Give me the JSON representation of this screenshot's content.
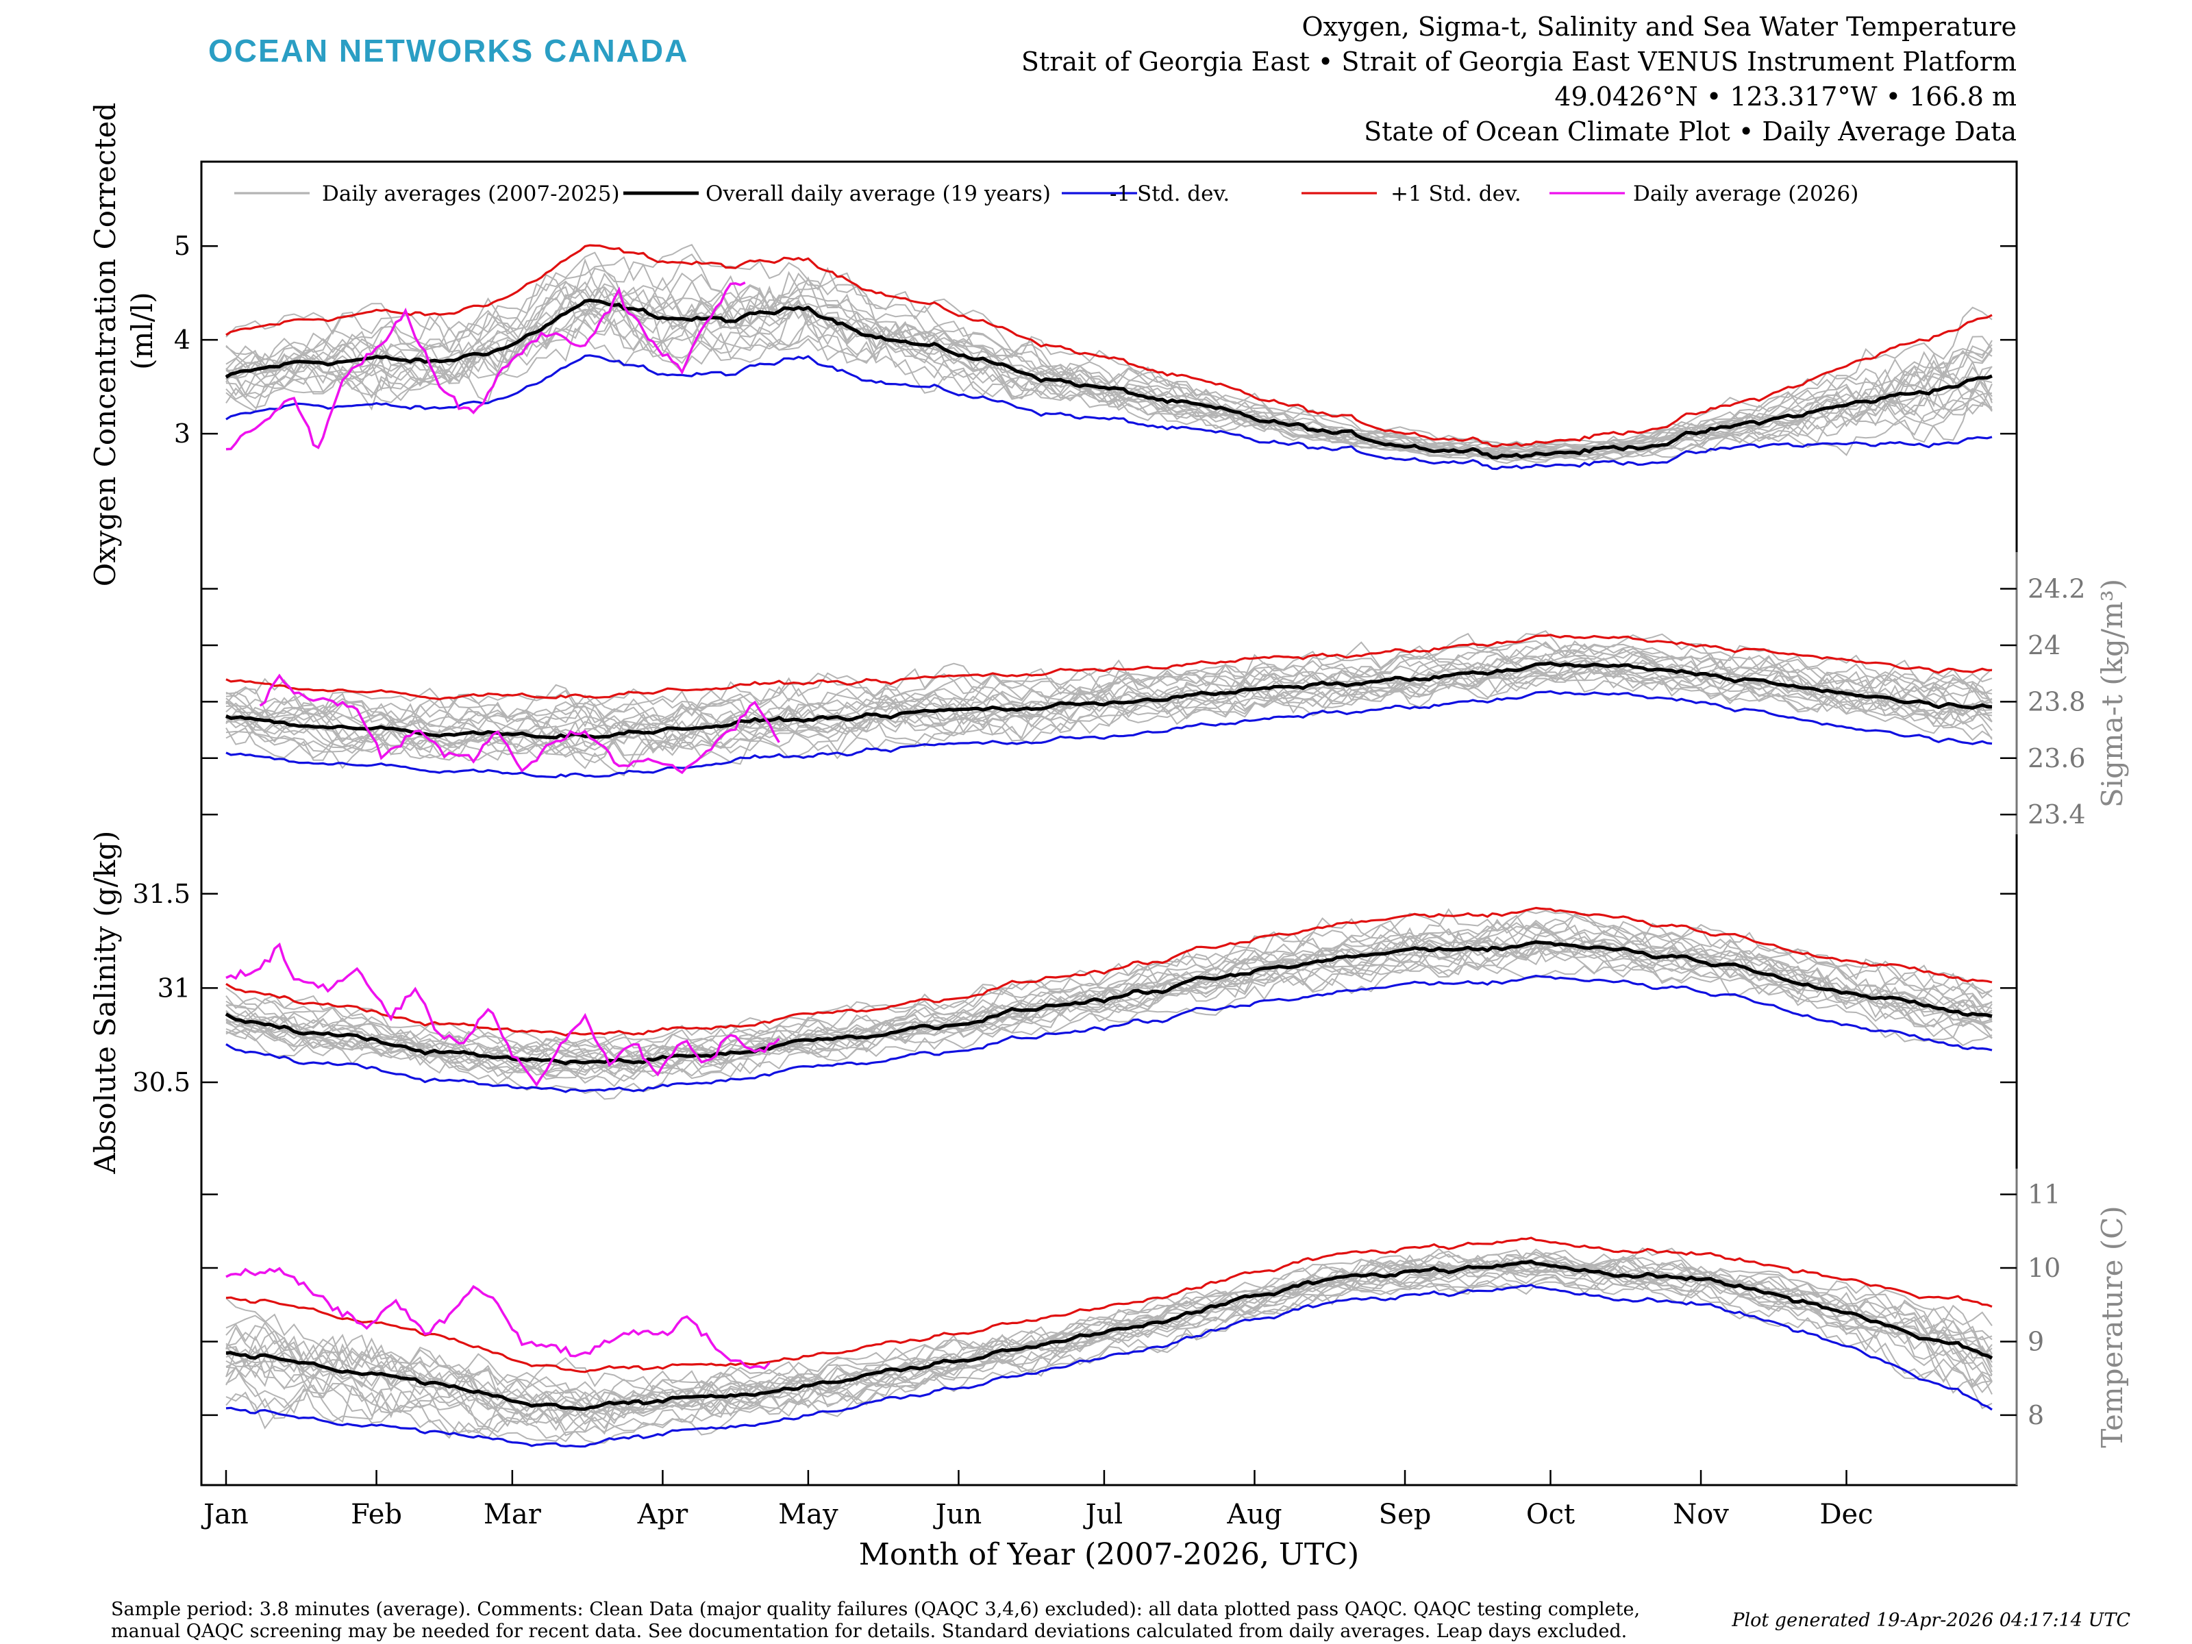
{
  "brand": {
    "name": "OCEAN NETWORKS CANADA",
    "color": "#2a9ec4"
  },
  "header": {
    "line1": "Oxygen, Sigma-t, Salinity and Sea Water Temperature",
    "line2": "Strait of Georgia East • Strait of Georgia East VENUS Instrument Platform",
    "line3": "49.0426°N • 123.317°W • 166.8 m",
    "line4": "State of Ocean Climate Plot • Daily Average Data"
  },
  "footer": {
    "note_line1": "Sample period: 3.8 minutes (average). Comments: Clean Data (major quality failures (QAQC 3,4,6) excluded): all data plotted pass QAQC. QAQC testing complete,",
    "note_line2": "manual QAQC screening may be needed for recent data. See documentation for details. Standard deviations calculated from daily averages. Leap days excluded.",
    "generated": "Plot generated 19-Apr-2026 04:17:14 UTC"
  },
  "chart_data": {
    "type": "line",
    "xlabel": "Month of Year (2007-2026, UTC)",
    "x_ticks": [
      "Jan",
      "Feb",
      "Mar",
      "Apr",
      "May",
      "Jun",
      "Jul",
      "Aug",
      "Sep",
      "Oct",
      "Nov",
      "Dec"
    ],
    "x_tick_days": [
      1,
      32,
      60,
      91,
      121,
      152,
      182,
      213,
      244,
      274,
      305,
      335
    ],
    "xlim": [
      1,
      365
    ],
    "grid": false,
    "legend": {
      "placement": "top",
      "entries": [
        {
          "name": "Daily averages (2007-2025)",
          "color": "#b4b4b4"
        },
        {
          "name": "Overall daily average (19 years)",
          "color": "#000000"
        },
        {
          "name": "-1 Std. dev.",
          "color": "#1010e0"
        },
        {
          "name": "+1 Std. dev.",
          "color": "#e01010"
        },
        {
          "name": "Daily average (2026)",
          "color": "#ee11ee"
        }
      ]
    },
    "panels": [
      {
        "id": "oxygen",
        "ylabel": "Oxygen Concentration Corrected",
        "ylabel2": "(ml/l)",
        "axis_side": "left",
        "ylim": [
          2.0,
          5.9
        ],
        "y_ticks": [
          3,
          4,
          5
        ],
        "y_tick_labels": [
          "3",
          "4",
          "5"
        ],
        "overall": [
          [
            1,
            3.6
          ],
          [
            15,
            3.75
          ],
          [
            30,
            3.8
          ],
          [
            45,
            3.75
          ],
          [
            60,
            3.95
          ],
          [
            75,
            4.4
          ],
          [
            90,
            4.25
          ],
          [
            105,
            4.2
          ],
          [
            121,
            4.35
          ],
          [
            135,
            4.05
          ],
          [
            152,
            3.85
          ],
          [
            170,
            3.6
          ],
          [
            190,
            3.4
          ],
          [
            213,
            3.15
          ],
          [
            235,
            2.95
          ],
          [
            250,
            2.85
          ],
          [
            264,
            2.8
          ],
          [
            274,
            2.8
          ],
          [
            290,
            2.85
          ],
          [
            305,
            3.0
          ],
          [
            320,
            3.15
          ],
          [
            335,
            3.3
          ],
          [
            350,
            3.45
          ],
          [
            365,
            3.6
          ]
        ],
        "std": [
          0.45,
          0.45,
          0.5,
          0.5,
          0.55,
          0.6,
          0.6,
          0.55,
          0.5,
          0.45,
          0.4,
          0.35,
          0.3,
          0.25,
          0.2,
          0.15,
          0.12,
          0.12,
          0.15,
          0.2,
          0.25,
          0.4,
          0.55,
          0.65
        ],
        "current_2026": [
          [
            1,
            2.8
          ],
          [
            8,
            3.1
          ],
          [
            15,
            3.4
          ],
          [
            20,
            2.8
          ],
          [
            25,
            3.6
          ],
          [
            32,
            3.9
          ],
          [
            38,
            4.3
          ],
          [
            45,
            3.5
          ],
          [
            52,
            3.2
          ],
          [
            60,
            3.8
          ],
          [
            68,
            4.1
          ],
          [
            75,
            3.9
          ],
          [
            82,
            4.5
          ],
          [
            88,
            4.0
          ],
          [
            95,
            3.7
          ],
          [
            100,
            4.2
          ],
          [
            105,
            4.6
          ],
          [
            108,
            4.6
          ]
        ]
      },
      {
        "id": "sigma_t",
        "ylabel": "Sigma-t (kg/m³)",
        "axis_side": "right",
        "ylim": [
          23.33,
          24.33
        ],
        "y_ticks": [
          23.4,
          23.6,
          23.8,
          24.0,
          24.2
        ],
        "y_tick_labels": [
          "23.4",
          "23.6",
          "23.8",
          "24",
          "24.2"
        ],
        "overall": [
          [
            1,
            23.75
          ],
          [
            15,
            23.72
          ],
          [
            32,
            23.7
          ],
          [
            45,
            23.68
          ],
          [
            60,
            23.69
          ],
          [
            75,
            23.68
          ],
          [
            91,
            23.7
          ],
          [
            105,
            23.72
          ],
          [
            121,
            23.74
          ],
          [
            135,
            23.75
          ],
          [
            152,
            23.77
          ],
          [
            170,
            23.78
          ],
          [
            182,
            23.8
          ],
          [
            200,
            23.82
          ],
          [
            213,
            23.84
          ],
          [
            230,
            23.86
          ],
          [
            244,
            23.88
          ],
          [
            260,
            23.9
          ],
          [
            274,
            23.93
          ],
          [
            290,
            23.92
          ],
          [
            305,
            23.9
          ],
          [
            320,
            23.87
          ],
          [
            335,
            23.82
          ],
          [
            350,
            23.8
          ],
          [
            365,
            23.77
          ]
        ],
        "std": [
          0.13,
          0.13,
          0.13,
          0.13,
          0.14,
          0.14,
          0.14,
          0.13,
          0.13,
          0.12,
          0.12,
          0.12,
          0.12,
          0.11,
          0.11,
          0.1,
          0.1,
          0.1,
          0.1,
          0.1,
          0.1,
          0.11,
          0.12,
          0.12,
          0.13
        ],
        "current_2026": [
          [
            8,
            23.78
          ],
          [
            12,
            23.9
          ],
          [
            16,
            23.82
          ],
          [
            22,
            23.8
          ],
          [
            28,
            23.78
          ],
          [
            33,
            23.6
          ],
          [
            40,
            23.7
          ],
          [
            46,
            23.62
          ],
          [
            52,
            23.6
          ],
          [
            57,
            23.7
          ],
          [
            62,
            23.55
          ],
          [
            68,
            23.65
          ],
          [
            75,
            23.7
          ],
          [
            82,
            23.58
          ],
          [
            88,
            23.6
          ],
          [
            95,
            23.55
          ],
          [
            100,
            23.62
          ],
          [
            105,
            23.7
          ],
          [
            110,
            23.8
          ],
          [
            115,
            23.65
          ]
        ]
      },
      {
        "id": "salinity",
        "ylabel": "Absolute Salinity (g/kg)",
        "axis_side": "left",
        "ylim": [
          30.1,
          31.75
        ],
        "y_ticks": [
          30.5,
          31.0,
          31.5
        ],
        "y_tick_labels": [
          "30.5",
          "31",
          "31.5"
        ],
        "overall": [
          [
            1,
            30.85
          ],
          [
            15,
            30.78
          ],
          [
            32,
            30.72
          ],
          [
            45,
            30.66
          ],
          [
            60,
            30.62
          ],
          [
            75,
            30.6
          ],
          [
            91,
            30.63
          ],
          [
            105,
            30.66
          ],
          [
            121,
            30.72
          ],
          [
            135,
            30.76
          ],
          [
            152,
            30.82
          ],
          [
            170,
            30.9
          ],
          [
            182,
            30.94
          ],
          [
            200,
            31.02
          ],
          [
            213,
            31.08
          ],
          [
            230,
            31.15
          ],
          [
            244,
            31.2
          ],
          [
            260,
            31.22
          ],
          [
            274,
            31.24
          ],
          [
            290,
            31.2
          ],
          [
            305,
            31.15
          ],
          [
            320,
            31.08
          ],
          [
            335,
            30.98
          ],
          [
            350,
            30.9
          ],
          [
            365,
            30.85
          ]
        ],
        "std": [
          0.16,
          0.16,
          0.15,
          0.15,
          0.15,
          0.15,
          0.15,
          0.14,
          0.14,
          0.14,
          0.14,
          0.15,
          0.15,
          0.16,
          0.17,
          0.18,
          0.18,
          0.18,
          0.18,
          0.17,
          0.16,
          0.16,
          0.17,
          0.18,
          0.18
        ],
        "current_2026": [
          [
            1,
            31.05
          ],
          [
            8,
            31.1
          ],
          [
            12,
            31.22
          ],
          [
            15,
            31.05
          ],
          [
            22,
            31.0
          ],
          [
            28,
            31.1
          ],
          [
            35,
            30.85
          ],
          [
            40,
            31.0
          ],
          [
            45,
            30.75
          ],
          [
            50,
            30.7
          ],
          [
            55,
            30.9
          ],
          [
            60,
            30.65
          ],
          [
            65,
            30.5
          ],
          [
            70,
            30.7
          ],
          [
            75,
            30.85
          ],
          [
            80,
            30.6
          ],
          [
            85,
            30.7
          ],
          [
            90,
            30.55
          ],
          [
            95,
            30.72
          ],
          [
            100,
            30.6
          ],
          [
            105,
            30.75
          ],
          [
            110,
            30.65
          ],
          [
            115,
            30.72
          ]
        ]
      },
      {
        "id": "temperature",
        "ylabel": "Temperature (C)",
        "axis_side": "right",
        "ylim": [
          7.05,
          11.35
        ],
        "y_ticks": [
          8,
          9,
          10,
          11
        ],
        "y_tick_labels": [
          "8",
          "9",
          "10",
          "11"
        ],
        "overall": [
          [
            1,
            8.85
          ],
          [
            15,
            8.75
          ],
          [
            32,
            8.55
          ],
          [
            45,
            8.4
          ],
          [
            60,
            8.2
          ],
          [
            75,
            8.1
          ],
          [
            91,
            8.2
          ],
          [
            105,
            8.3
          ],
          [
            121,
            8.4
          ],
          [
            135,
            8.55
          ],
          [
            152,
            8.75
          ],
          [
            170,
            8.95
          ],
          [
            182,
            9.15
          ],
          [
            200,
            9.4
          ],
          [
            213,
            9.6
          ],
          [
            230,
            9.85
          ],
          [
            244,
            9.95
          ],
          [
            260,
            10.0
          ],
          [
            274,
            10.02
          ],
          [
            290,
            9.95
          ],
          [
            305,
            9.85
          ],
          [
            320,
            9.65
          ],
          [
            335,
            9.4
          ],
          [
            350,
            9.1
          ],
          [
            365,
            8.8
          ]
        ],
        "std": [
          0.75,
          0.75,
          0.7,
          0.65,
          0.55,
          0.5,
          0.45,
          0.42,
          0.4,
          0.38,
          0.37,
          0.36,
          0.34,
          0.33,
          0.32,
          0.32,
          0.32,
          0.32,
          0.32,
          0.33,
          0.34,
          0.38,
          0.45,
          0.55,
          0.7
        ],
        "current_2026": [
          [
            1,
            9.9
          ],
          [
            8,
            9.95
          ],
          [
            12,
            10.0
          ],
          [
            18,
            9.7
          ],
          [
            25,
            9.4
          ],
          [
            30,
            9.2
          ],
          [
            36,
            9.55
          ],
          [
            42,
            9.1
          ],
          [
            48,
            9.45
          ],
          [
            52,
            9.75
          ],
          [
            56,
            9.6
          ],
          [
            62,
            9.0
          ],
          [
            68,
            8.95
          ],
          [
            73,
            8.8
          ],
          [
            80,
            9.0
          ],
          [
            86,
            9.15
          ],
          [
            92,
            9.1
          ],
          [
            96,
            9.35
          ],
          [
            100,
            9.05
          ],
          [
            104,
            8.8
          ],
          [
            108,
            8.65
          ],
          [
            113,
            8.7
          ]
        ]
      }
    ]
  }
}
